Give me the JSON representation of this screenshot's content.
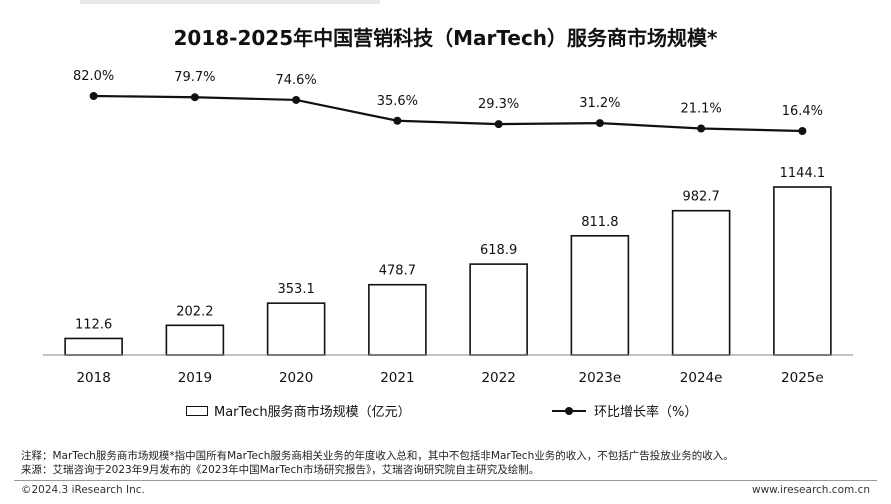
{
  "chart_data": {
    "type": "bar+line",
    "title": "2018-2025年中国营销科技（MarTech）服务商市场规模*",
    "categories": [
      "2018",
      "2019",
      "2020",
      "2021",
      "2022",
      "2023e",
      "2024e",
      "2025e"
    ],
    "series": [
      {
        "name": "MarTech服务商市场规模（亿元）",
        "type": "bar",
        "values": [
          112.6,
          202.2,
          353.1,
          478.7,
          618.9,
          811.8,
          982.7,
          1144.1
        ],
        "labels": [
          "112.6",
          "202.2",
          "353.1",
          "478.7",
          "618.9",
          "811.8",
          "982.7",
          "1144.1"
        ]
      },
      {
        "name": "环比增长率（%）",
        "type": "line",
        "values": [
          82.0,
          79.7,
          74.6,
          35.6,
          29.3,
          31.2,
          21.1,
          16.4
        ],
        "labels": [
          "82.0%",
          "79.7%",
          "74.6%",
          "35.6%",
          "29.3%",
          "31.2%",
          "21.1%",
          "16.4%"
        ]
      }
    ],
    "legend_position": "bottom",
    "grid": false
  },
  "notes": [
    "注释：MarTech服务商市场规模*指中国所有MarTech服务商相关业务的年度收入总和，其中不包括非MarTech业务的收入，不包括广告投放业务的收入。",
    "来源：艾瑞咨询于2023年9月发布的《2023年中国MarTech市场研究报告》，艾瑞咨询研究院自主研究及绘制。"
  ],
  "footer": {
    "copyright": "©2024.3 iResearch Inc.",
    "website": "www.iresearch.com.cn"
  },
  "colors": {
    "bar_fill": "#ffffff",
    "stroke": "#111111"
  }
}
